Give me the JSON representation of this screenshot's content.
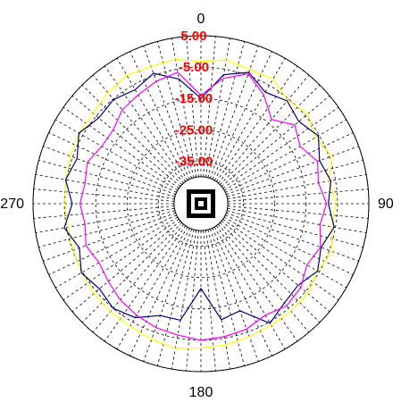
{
  "chart_data": {
    "type": "polar-line",
    "title": "",
    "angle_unit": "degrees",
    "angle_direction": "clockwise",
    "zero_position": "top",
    "angle_labels": [
      "0",
      "90",
      "180",
      "270"
    ],
    "angle_label_values": [
      0,
      90,
      180,
      270
    ],
    "radial_ticks": [
      "5.00",
      "-5.00",
      "-15.00",
      "-25.00",
      "-35.00"
    ],
    "radial_tick_values": [
      5,
      -5,
      -15,
      -25,
      -35
    ],
    "rlim": [
      -40,
      5
    ],
    "grid": true,
    "grid_style": "dashed",
    "colors": {
      "grid": "#000000",
      "tick_labels": "#ff0000",
      "yellow": "#ffff00",
      "blue": "#000080",
      "magenta": "#ff00ff"
    },
    "series": [
      {
        "color": "#ffff00",
        "angles": [
          0,
          10,
          20,
          30,
          40,
          50,
          60,
          70,
          80,
          90,
          100,
          110,
          120,
          130,
          140,
          150,
          160,
          170,
          180,
          190,
          200,
          210,
          220,
          230,
          240,
          250,
          260,
          270,
          280,
          290,
          300,
          310,
          320,
          330,
          340,
          350
        ],
        "values": [
          -3.2,
          -2.0,
          -3.0,
          -2.6,
          -5.5,
          -4.0,
          -6.3,
          -4.2,
          -7.0,
          -5.4,
          -6.3,
          -4.0,
          -5.6,
          -4.0,
          -3.9,
          -3.8,
          -3.4,
          -2.8,
          -2.5,
          -1.7,
          -2.5,
          -3.4,
          -3.6,
          -4.0,
          -4.6,
          -5.2,
          -5.5,
          -5.2,
          -4.8,
          -4.2,
          -3.7,
          -3.7,
          -2.4,
          -1.3,
          -2.0,
          -1.8
        ]
      },
      {
        "color": "#000080",
        "angles": [
          0,
          10,
          20,
          30,
          40,
          50,
          60,
          70,
          80,
          90,
          100,
          110,
          120,
          130,
          140,
          150,
          160,
          170,
          180,
          190,
          200,
          210,
          220,
          230,
          240,
          250,
          260,
          270,
          280,
          290,
          300,
          310,
          320,
          330,
          340,
          350
        ],
        "values": [
          -15.0,
          -6.8,
          -4.0,
          -7.5,
          -5.8,
          -7.8,
          -5.3,
          -8.3,
          -6.5,
          -7.9,
          -5.4,
          -7.8,
          -5.6,
          -8.1,
          -7.2,
          -4.5,
          -12.2,
          -11.0,
          -21.5,
          -10.8,
          -10.6,
          -6.6,
          -5.0,
          -6.3,
          -4.5,
          -7.3,
          -4.3,
          -7.5,
          -4.7,
          -6.5,
          -3.6,
          -6.0,
          -5.2,
          -6.6,
          -4.3,
          -8.2
        ]
      },
      {
        "color": "#ff00ff",
        "angles": [
          0,
          10,
          20,
          30,
          40,
          50,
          60,
          70,
          80,
          90,
          100,
          110,
          120,
          130,
          140,
          150,
          160,
          170,
          180,
          190,
          200,
          210,
          220,
          230,
          240,
          250,
          260,
          270,
          280,
          290,
          300,
          310,
          320,
          330,
          340,
          350
        ],
        "values": [
          -14.0,
          -8.0,
          -4.5,
          -8.5,
          -13.5,
          -9.5,
          -12.0,
          -9.0,
          -10.5,
          -8.5,
          -10.0,
          -8.0,
          -9.5,
          -7.0,
          -6.0,
          -7.5,
          -6.0,
          -5.5,
          -5.0,
          -6.0,
          -6.5,
          -7.5,
          -8.5,
          -10.0,
          -11.0,
          -9.5,
          -11.0,
          -10.0,
          -11.0,
          -10.0,
          -12.0,
          -12.0,
          -9.5,
          -8.5,
          -7.0,
          -6.0
        ]
      }
    ]
  }
}
